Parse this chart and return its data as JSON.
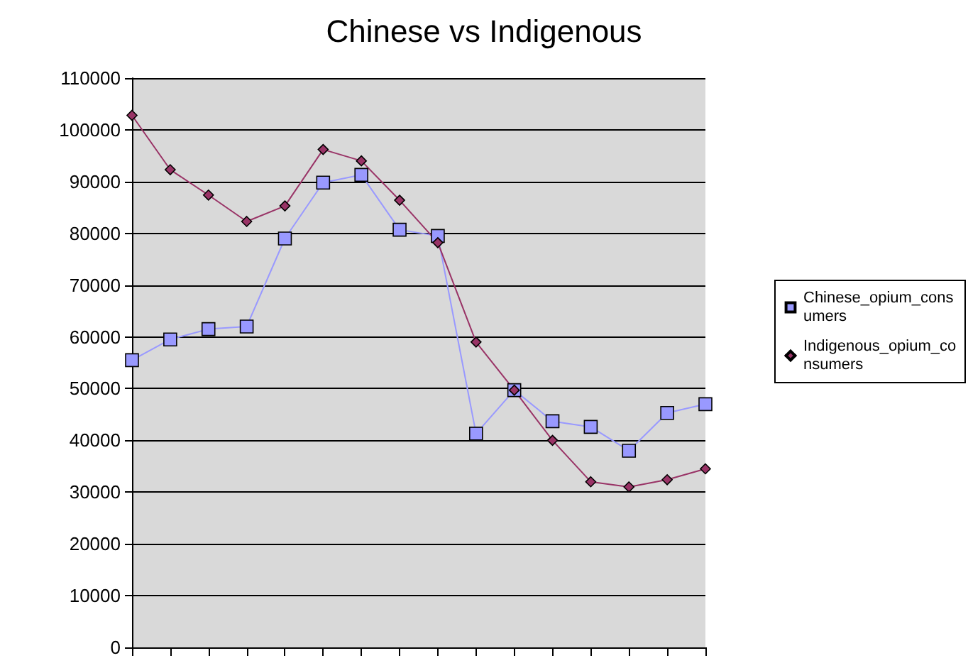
{
  "chart_data": {
    "type": "line",
    "title": "Chinese vs Indigenous",
    "categories": [
      null,
      null,
      null,
      null,
      null,
      null,
      null,
      null,
      null,
      null,
      null,
      null,
      null,
      null,
      null,
      null
    ],
    "series": [
      {
        "name": "Chinese_opium_consumers",
        "color": "#9999ff",
        "marker": "square",
        "values": [
          55500,
          59500,
          61500,
          62000,
          79000,
          89800,
          91300,
          80700,
          79500,
          41300,
          49700,
          43700,
          42600,
          38000,
          45300,
          47000
        ]
      },
      {
        "name": "Indigenous_opium_consumers",
        "color": "#993366",
        "marker": "diamond",
        "values": [
          102800,
          92300,
          87400,
          82300,
          85300,
          96200,
          94000,
          86400,
          78200,
          59000,
          49700,
          40000,
          32000,
          31000,
          32400,
          34500
        ]
      }
    ],
    "ylim": [
      0,
      110000
    ],
    "yticks": [
      0,
      10000,
      20000,
      30000,
      40000,
      50000,
      60000,
      70000,
      80000,
      90000,
      100000,
      110000
    ],
    "grid": "y",
    "legend": "right"
  }
}
